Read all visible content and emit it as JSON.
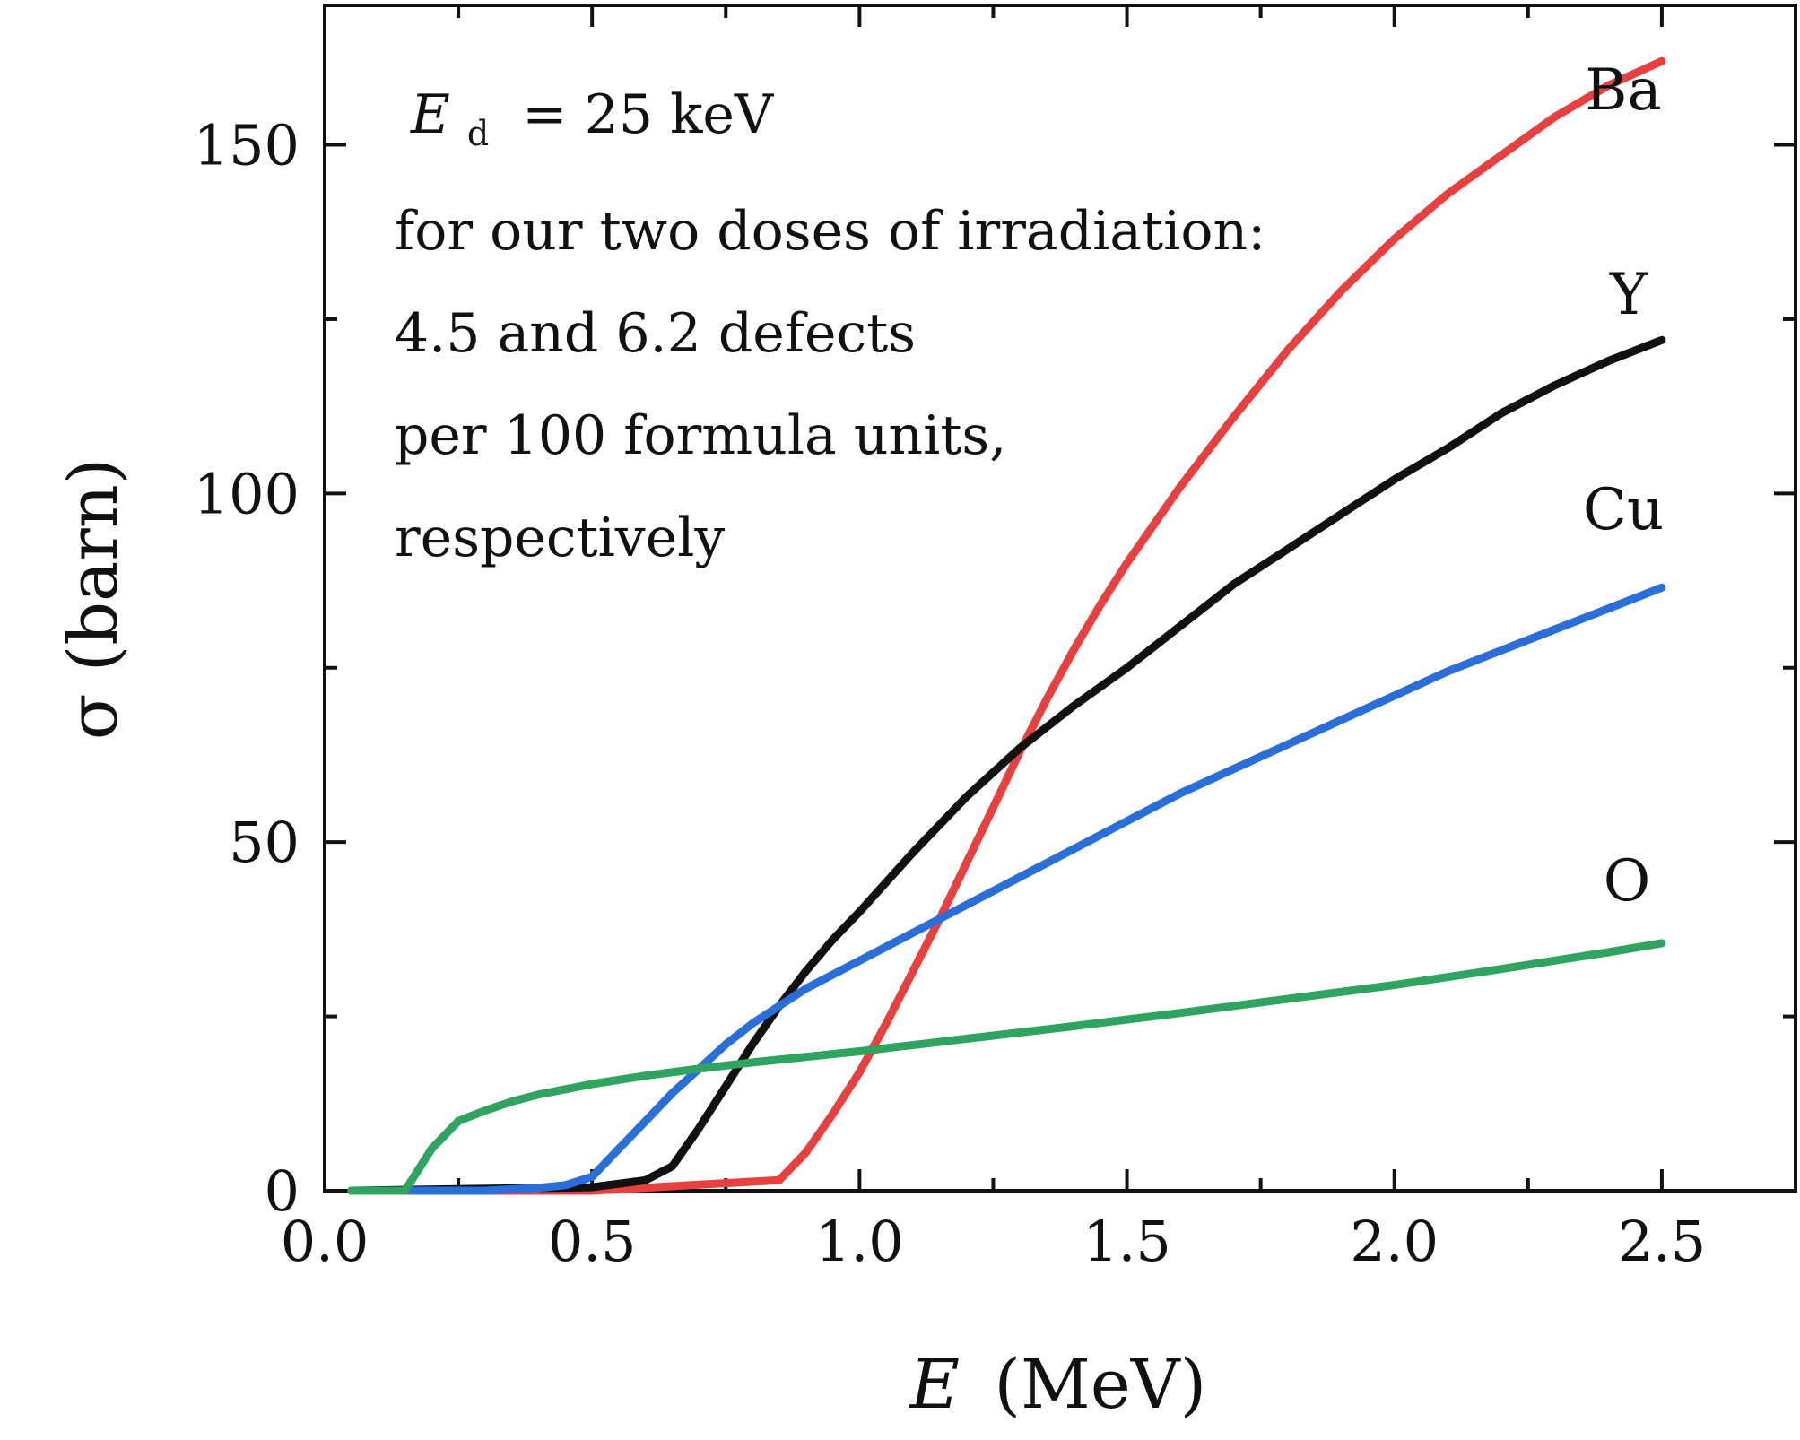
{
  "chart_data": {
    "type": "line",
    "title": "",
    "xlabel_symbol": "E",
    "xlabel_unit": "(MeV)",
    "ylabel": "σ (barn)",
    "xlim": [
      0.0,
      2.75
    ],
    "ylim": [
      0,
      170
    ],
    "xticks": [
      0.0,
      0.5,
      1.0,
      1.5,
      2.0,
      2.5
    ],
    "xtick_labels": [
      "0.0",
      "0.5",
      "1.0",
      "1.5",
      "2.0",
      "2.5"
    ],
    "xminor": [
      0.25,
      0.75,
      1.25,
      1.75,
      2.25
    ],
    "yticks": [
      0,
      50,
      100,
      150
    ],
    "ytick_labels": [
      "0",
      "50",
      "100",
      "150"
    ],
    "yminor": [
      25,
      75,
      125
    ],
    "grid": false,
    "annotation": {
      "ed_symbol": "E",
      "ed_subscript": "d",
      "ed_value": "= 25 keV",
      "lines": [
        "for our two doses of irradiation:",
        "4.5 and 6.2 defects",
        "per 100 formula units,",
        "respectively"
      ]
    },
    "series": [
      {
        "name": "Ba",
        "color": "#e8403f",
        "x": [
          0.05,
          0.5,
          0.85,
          0.9,
          0.95,
          1.0,
          1.05,
          1.1,
          1.15,
          1.2,
          1.25,
          1.3,
          1.35,
          1.4,
          1.45,
          1.5,
          1.6,
          1.7,
          1.8,
          1.9,
          2.0,
          2.1,
          2.2,
          2.3,
          2.4,
          2.5
        ],
        "y": [
          0,
          0,
          1.5,
          5.5,
          11,
          17,
          24,
          31.5,
          39,
          47,
          55,
          63,
          70.5,
          77.5,
          84,
          90,
          101,
          111,
          120.5,
          129,
          136.5,
          143,
          148.5,
          154,
          158.5,
          162
        ]
      },
      {
        "name": "Y",
        "color": "#111111",
        "x": [
          0.05,
          0.5,
          0.6,
          0.65,
          0.7,
          0.75,
          0.8,
          0.85,
          0.9,
          0.95,
          1.0,
          1.1,
          1.2,
          1.3,
          1.4,
          1.5,
          1.6,
          1.7,
          1.8,
          1.9,
          2.0,
          2.1,
          2.2,
          2.3,
          2.4,
          2.5
        ],
        "y": [
          0,
          0.5,
          1.5,
          3.5,
          9,
          15,
          21,
          26.5,
          31.5,
          36,
          40,
          48.5,
          56.5,
          63.5,
          69.5,
          75,
          81,
          87,
          92,
          97,
          102,
          106.5,
          111.5,
          115.5,
          119,
          122
        ]
      },
      {
        "name": "Cu",
        "color": "#2a6fd9",
        "x": [
          0.05,
          0.3,
          0.4,
          0.45,
          0.5,
          0.55,
          0.6,
          0.65,
          0.7,
          0.75,
          0.8,
          0.85,
          0.9,
          1.0,
          1.1,
          1.2,
          1.3,
          1.4,
          1.5,
          1.6,
          1.7,
          1.8,
          1.9,
          2.0,
          2.1,
          2.2,
          2.3,
          2.4,
          2.5
        ],
        "y": [
          0,
          0,
          0.4,
          0.8,
          2,
          6,
          10,
          14,
          17.5,
          21,
          24,
          26.5,
          29,
          33,
          37,
          41,
          45,
          49,
          53,
          57,
          60.5,
          64,
          67.5,
          71,
          74.5,
          77.5,
          80.5,
          83.5,
          86.5
        ]
      },
      {
        "name": "O",
        "color": "#2fa360",
        "x": [
          0.05,
          0.15,
          0.2,
          0.25,
          0.3,
          0.35,
          0.4,
          0.5,
          0.6,
          0.7,
          0.8,
          0.9,
          1.0,
          1.2,
          1.4,
          1.6,
          1.8,
          2.0,
          2.2,
          2.4,
          2.5
        ],
        "y": [
          0,
          0,
          6,
          10,
          11.5,
          12.8,
          13.8,
          15.3,
          16.5,
          17.5,
          18.4,
          19.2,
          20,
          21.8,
          23.6,
          25.5,
          27.5,
          29.5,
          31.8,
          34.2,
          35.5
        ]
      }
    ]
  }
}
